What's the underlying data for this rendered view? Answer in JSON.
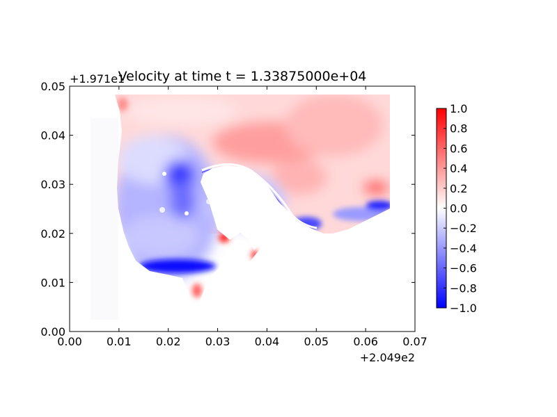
{
  "chart_data": {
    "type": "heatmap",
    "title": "Velocity at time t = 1.33875000e+04",
    "x_offset_label": "+2.049e2",
    "y_offset_label": "+1.971e1",
    "xlim": [
      0.0,
      0.07
    ],
    "ylim": [
      0.0,
      0.05
    ],
    "x_ticks": [
      "0.00",
      "0.01",
      "0.02",
      "0.03",
      "0.04",
      "0.05",
      "0.06",
      "0.07"
    ],
    "y_ticks": [
      "0.00",
      "0.01",
      "0.02",
      "0.03",
      "0.04",
      "0.05"
    ],
    "colorbar": {
      "range": [
        -1.0,
        1.0
      ],
      "ticks": [
        "−1.0",
        "−0.8",
        "−0.6",
        "−0.4",
        "−0.2",
        "0.0",
        "0.2",
        "0.4",
        "0.6",
        "0.8",
        "1.0"
      ],
      "colormap": "bwr",
      "low_color": "#0000ff",
      "mid_color": "#ffffff",
      "high_color": "#ff0000"
    },
    "grid": false
  }
}
